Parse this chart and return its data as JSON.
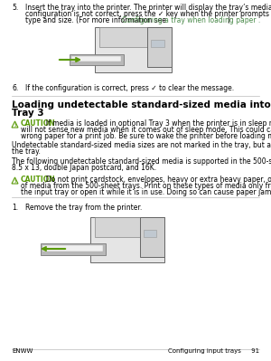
{
  "bg_color": "#ffffff",
  "text_color": "#000000",
  "green_color": "#5a9a08",
  "link_color": "#4a8a4a",
  "step5_line1": "Insert the tray into the printer. The printer will display the tray’s media type and size. If the",
  "step5_line2": "configuration is not correct, press the ✓ key when the printer prompts you to configure the tray for",
  "step5_line3_pre": "type and size. (For more information see ",
  "step5_line3_link": "Configuring a tray when loading paper .",
  "step5_line3_post": ")",
  "step6_text": "If the configuration is correct, press ✓ to clear the message.",
  "section_title_1": "Loading undetectable standard-sized media into Tray 2 and optional",
  "section_title_2": "Tray 3",
  "caution1_label": "CAUTION",
  "caution1_rest": "  If media is loaded in optional Tray 3 when the printer is in sleep mode, the printer",
  "caution1_line2": "will not sense new media when it comes out of sleep mode. This could cause the printer to use",
  "caution1_line3": "wrong paper for a print job. Be sure to wake the printer before loading media in optional Tray 3.",
  "body1_line1": "Undetectable standard-sized media sizes are not marked in the tray, but are listed in the Size menu for",
  "body1_line2": "the tray.",
  "body2_line1": "The following undetectable standard-sized media is supported in the 500-sheet trays: executive (JIS),",
  "body2_line2": "8.5 x 13, double Japan postcard, and 16K.",
  "caution2_label": "CAUTION",
  "caution2_rest": "  Do not print cardstock, envelopes, heavy or extra heavy paper, or unsupported sizes",
  "caution2_line2": "of media from the 500-sheet trays. Print on these types of media only from Tray 1. Do not overfill",
  "caution2_line3": "the input tray or open it while it is in use. Doing so can cause paper jams.",
  "step1_text": "Remove the tray from the printer.",
  "footer_left": "ENWW",
  "footer_right": "Configuring input trays     91",
  "font_size_body": 5.5,
  "font_size_title": 7.5,
  "font_size_step": 5.5,
  "font_size_footer": 5.0
}
